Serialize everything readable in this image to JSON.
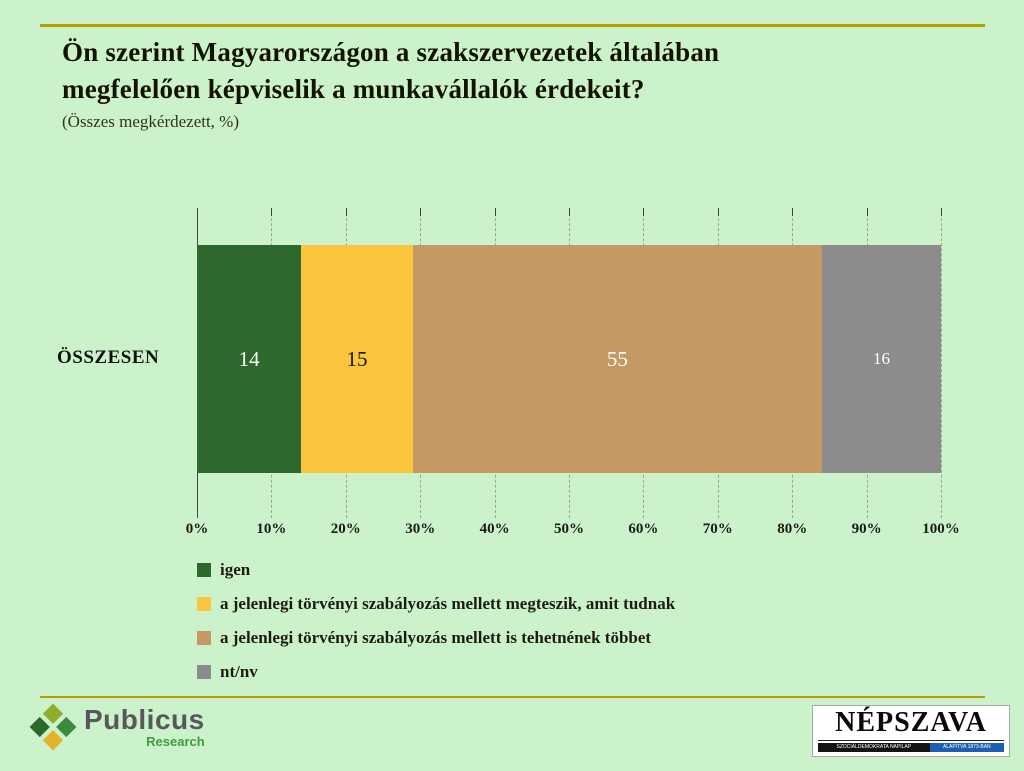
{
  "page": {
    "background_color": "#ccf2cc",
    "accent_line_color": "#b3a000"
  },
  "header": {
    "title_line1": "Ön szerint Magyarországon a szakszervezetek általában",
    "title_line2": "megfelelően képviselik a munkavállalók érdekeit?",
    "subtitle": "(Összes megkérdezett, %)"
  },
  "chart_data": {
    "type": "bar",
    "orientation": "horizontal",
    "stacked": true,
    "title": "Ön szerint Magyarországon a szakszervezetek általában megfelelően képviselik a munkavállalók érdekeit?",
    "subtitle": "(Összes megkérdezett, %)",
    "categories": [
      "ÖSSZESEN"
    ],
    "series": [
      {
        "name": "igen",
        "color": "#2d682d",
        "values": [
          14
        ],
        "value_text_color": "#ffffff"
      },
      {
        "name": "a jelenlegi törvényi szabályozás mellett megteszik, amit tudnak",
        "color": "#fcc53e",
        "values": [
          15
        ],
        "value_text_color": "#161616"
      },
      {
        "name": "a jelenlegi törvényi szabályozás mellett is tehetnének többet",
        "color": "#c49a62",
        "values": [
          55
        ],
        "value_text_color": "#ffffff"
      },
      {
        "name": "nt/nv",
        "color": "#8c8c8c",
        "values": [
          16
        ],
        "value_text_color": "#ffffff"
      }
    ],
    "x_axis": {
      "min": 0,
      "max": 100,
      "ticks": [
        "0%",
        "10%",
        "20%",
        "30%",
        "40%",
        "50%",
        "60%",
        "70%",
        "80%",
        "90%",
        "100%"
      ]
    },
    "grid": "dashed-vertical",
    "legend_position": "bottom-left"
  },
  "footer": {
    "publicus": {
      "name": "Publicus",
      "sub": "Research"
    },
    "nepszava": {
      "name": "NÉPSZAVA",
      "tagline_left": "SZOCIÁLDEMOKRATA NAPILAP",
      "tagline_right": "ALAPÍTVA 1873-BAN"
    }
  }
}
